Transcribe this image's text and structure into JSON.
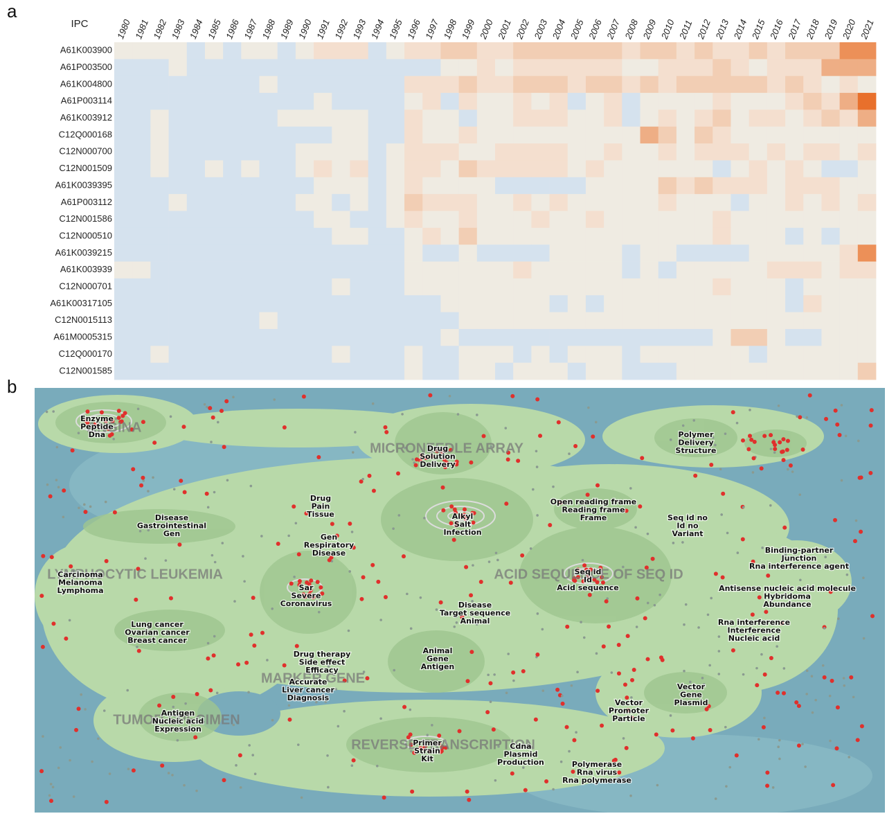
{
  "panels": [
    "a",
    "b"
  ],
  "chart_data": {
    "type": "heatmap",
    "y_label": "IPC",
    "categories": [
      "1980",
      "1981",
      "1982",
      "1983",
      "1984",
      "1985",
      "1986",
      "1987",
      "1988",
      "1989",
      "1990",
      "1991",
      "1992",
      "1993",
      "1994",
      "1995",
      "1996",
      "1997",
      "1998",
      "1999",
      "2000",
      "2001",
      "2002",
      "2003",
      "2004",
      "2005",
      "2006",
      "2007",
      "2008",
      "2009",
      "2010",
      "2011",
      "2012",
      "2013",
      "2014",
      "2015",
      "2016",
      "2017",
      "2018",
      "2019",
      "2020",
      "2021"
    ],
    "rows": [
      "A61K003900",
      "A61P003500",
      "A61K004800",
      "A61P003114",
      "A61K003912",
      "C12Q000168",
      "C12N000700",
      "C12N001509",
      "A61K0039395",
      "A61P003112",
      "C12N001586",
      "C12N000510",
      "A61K0039215",
      "A61K003939",
      "C12N000701",
      "A61K00317105",
      "C12N0015113",
      "A61M0005315",
      "C12Q000170",
      "C12N001585"
    ],
    "colorscale": [
      "#d5e2ee",
      "#efebe2",
      "#f4dfcf",
      "#f2ceb4",
      "#eeae85",
      "#ec9058",
      "#e8702c"
    ],
    "values": [
      [
        1,
        1,
        1,
        1,
        0,
        1,
        0,
        1,
        1,
        0,
        1,
        2,
        2,
        2,
        0,
        1,
        2,
        2,
        3,
        3,
        2,
        2,
        3,
        3,
        3,
        3,
        3,
        3,
        2,
        3,
        3,
        2,
        3,
        2,
        2,
        3,
        2,
        3,
        3,
        3,
        5,
        5
      ],
      [
        0,
        0,
        0,
        1,
        0,
        0,
        0,
        0,
        0,
        0,
        0,
        0,
        0,
        0,
        0,
        0,
        0,
        0,
        1,
        1,
        2,
        1,
        2,
        2,
        2,
        2,
        2,
        2,
        1,
        1,
        2,
        2,
        2,
        3,
        2,
        1,
        2,
        2,
        2,
        4,
        4,
        4
      ],
      [
        0,
        0,
        0,
        0,
        0,
        0,
        0,
        0,
        1,
        0,
        0,
        0,
        0,
        0,
        0,
        0,
        2,
        2,
        2,
        3,
        2,
        2,
        3,
        3,
        3,
        2,
        3,
        3,
        2,
        3,
        2,
        3,
        3,
        3,
        3,
        3,
        2,
        3,
        2,
        1,
        2,
        1
      ],
      [
        0,
        0,
        0,
        0,
        0,
        0,
        0,
        0,
        0,
        0,
        0,
        1,
        0,
        0,
        0,
        0,
        1,
        2,
        0,
        2,
        1,
        1,
        2,
        1,
        2,
        0,
        1,
        2,
        0,
        1,
        1,
        1,
        1,
        2,
        1,
        1,
        1,
        2,
        3,
        2,
        4,
        6
      ],
      [
        0,
        0,
        1,
        0,
        0,
        0,
        0,
        0,
        0,
        1,
        1,
        1,
        1,
        1,
        0,
        0,
        2,
        1,
        1,
        0,
        1,
        1,
        2,
        2,
        2,
        1,
        1,
        2,
        0,
        1,
        2,
        1,
        2,
        3,
        1,
        2,
        2,
        1,
        2,
        3,
        2,
        4
      ],
      [
        0,
        0,
        1,
        0,
        0,
        0,
        0,
        0,
        0,
        0,
        0,
        0,
        1,
        1,
        0,
        0,
        2,
        1,
        1,
        2,
        1,
        1,
        1,
        1,
        1,
        1,
        1,
        1,
        1,
        4,
        3,
        1,
        3,
        2,
        1,
        1,
        1,
        1,
        1,
        1,
        1,
        1
      ],
      [
        0,
        0,
        1,
        0,
        0,
        0,
        0,
        0,
        0,
        0,
        1,
        1,
        1,
        1,
        0,
        1,
        2,
        2,
        2,
        1,
        1,
        2,
        2,
        2,
        2,
        1,
        1,
        2,
        1,
        1,
        2,
        1,
        2,
        2,
        2,
        1,
        2,
        1,
        2,
        2,
        1,
        2
      ],
      [
        0,
        0,
        1,
        0,
        0,
        1,
        0,
        1,
        0,
        0,
        1,
        2,
        1,
        2,
        0,
        1,
        2,
        2,
        1,
        3,
        2,
        2,
        2,
        2,
        2,
        1,
        2,
        1,
        1,
        1,
        1,
        1,
        1,
        0,
        1,
        2,
        1,
        2,
        1,
        0,
        0,
        1
      ],
      [
        0,
        0,
        0,
        0,
        0,
        0,
        0,
        0,
        0,
        0,
        0,
        1,
        1,
        1,
        0,
        1,
        2,
        1,
        1,
        1,
        1,
        0,
        0,
        0,
        0,
        0,
        1,
        1,
        1,
        1,
        3,
        2,
        3,
        2,
        2,
        2,
        1,
        2,
        2,
        2,
        1,
        1
      ],
      [
        0,
        0,
        0,
        1,
        0,
        0,
        0,
        0,
        0,
        0,
        1,
        1,
        0,
        1,
        0,
        1,
        3,
        2,
        2,
        2,
        1,
        1,
        2,
        1,
        2,
        1,
        1,
        1,
        1,
        1,
        2,
        1,
        1,
        1,
        0,
        1,
        1,
        2,
        1,
        2,
        1,
        2
      ],
      [
        0,
        0,
        0,
        0,
        0,
        0,
        0,
        0,
        0,
        0,
        0,
        1,
        1,
        0,
        0,
        1,
        2,
        1,
        1,
        2,
        1,
        1,
        1,
        2,
        1,
        1,
        2,
        1,
        1,
        1,
        1,
        1,
        1,
        2,
        1,
        1,
        1,
        1,
        1,
        1,
        1,
        1
      ],
      [
        0,
        0,
        0,
        0,
        0,
        0,
        0,
        0,
        0,
        0,
        0,
        0,
        1,
        1,
        0,
        0,
        1,
        2,
        1,
        3,
        1,
        1,
        1,
        1,
        1,
        1,
        1,
        1,
        1,
        1,
        1,
        1,
        1,
        2,
        1,
        1,
        1,
        0,
        1,
        0,
        1,
        1
      ],
      [
        0,
        0,
        0,
        0,
        0,
        0,
        0,
        0,
        0,
        0,
        0,
        0,
        0,
        0,
        0,
        0,
        1,
        0,
        0,
        1,
        0,
        0,
        0,
        0,
        1,
        1,
        1,
        1,
        0,
        1,
        1,
        0,
        0,
        0,
        0,
        1,
        1,
        1,
        1,
        1,
        2,
        5
      ],
      [
        1,
        1,
        0,
        0,
        0,
        0,
        0,
        0,
        0,
        0,
        0,
        0,
        0,
        0,
        0,
        0,
        1,
        1,
        1,
        1,
        1,
        1,
        2,
        1,
        1,
        1,
        1,
        1,
        0,
        1,
        0,
        1,
        1,
        1,
        1,
        1,
        2,
        2,
        2,
        1,
        2,
        2
      ],
      [
        0,
        0,
        0,
        0,
        0,
        0,
        0,
        0,
        0,
        0,
        0,
        0,
        1,
        0,
        0,
        0,
        1,
        1,
        1,
        1,
        1,
        1,
        1,
        1,
        1,
        1,
        1,
        1,
        1,
        1,
        1,
        1,
        1,
        2,
        1,
        1,
        1,
        0,
        1,
        1,
        1,
        1
      ],
      [
        0,
        0,
        0,
        0,
        0,
        0,
        0,
        0,
        0,
        0,
        0,
        0,
        0,
        0,
        0,
        0,
        0,
        0,
        1,
        1,
        1,
        1,
        1,
        1,
        0,
        1,
        0,
        1,
        1,
        1,
        1,
        1,
        1,
        1,
        1,
        1,
        1,
        0,
        2,
        1,
        1,
        1
      ],
      [
        0,
        0,
        0,
        0,
        0,
        0,
        0,
        0,
        1,
        0,
        0,
        0,
        0,
        0,
        0,
        0,
        0,
        0,
        0,
        1,
        1,
        1,
        1,
        1,
        1,
        1,
        1,
        1,
        1,
        1,
        1,
        1,
        1,
        1,
        1,
        1,
        1,
        1,
        1,
        1,
        1,
        1
      ],
      [
        0,
        0,
        0,
        0,
        0,
        0,
        0,
        0,
        0,
        0,
        0,
        0,
        0,
        0,
        0,
        0,
        0,
        0,
        1,
        0,
        0,
        0,
        0,
        0,
        0,
        0,
        0,
        0,
        0,
        0,
        0,
        0,
        0,
        1,
        3,
        3,
        1,
        0,
        0,
        1,
        1,
        1
      ],
      [
        0,
        0,
        1,
        0,
        0,
        0,
        0,
        0,
        0,
        0,
        0,
        0,
        1,
        0,
        0,
        0,
        1,
        0,
        0,
        1,
        1,
        1,
        0,
        1,
        0,
        1,
        1,
        1,
        0,
        1,
        1,
        1,
        1,
        1,
        1,
        0,
        1,
        1,
        1,
        1,
        1,
        1
      ],
      [
        0,
        0,
        0,
        0,
        0,
        0,
        0,
        0,
        0,
        0,
        0,
        0,
        0,
        0,
        0,
        0,
        1,
        0,
        0,
        1,
        1,
        0,
        1,
        1,
        1,
        0,
        1,
        1,
        0,
        0,
        0,
        1,
        1,
        1,
        1,
        1,
        1,
        1,
        1,
        1,
        1,
        3
      ]
    ]
  },
  "landscape": {
    "regions": [
      "ANGINA",
      "MICRONEEDLE ARRAY",
      "LYMPHOCYTIC LEUKEMIA",
      "ACID SEQUENCE OF SEQ ID",
      "MARKER GENE",
      "TUMOR SPECIMEN",
      "REVERSE TRANSCRIPTION"
    ],
    "clusters": [
      [
        "Enzyme",
        "Peptide",
        "Dna"
      ],
      [
        "Drug",
        "Solution",
        "Delivery"
      ],
      [
        "Polymer",
        "Delivery",
        "Structure"
      ],
      [
        "Drug",
        "Pain",
        "Tissue"
      ],
      [
        "Open reading frame",
        "Reading frame",
        "Frame"
      ],
      [
        "Alkyl",
        "Salt",
        "Infection"
      ],
      [
        "Seq id no",
        "Id no",
        "Variant"
      ],
      [
        "Disease",
        "Gastrointestinal",
        "Gen"
      ],
      [
        "Gen",
        "Respiratory",
        "Disease"
      ],
      [
        "Binding-partner",
        "Junction",
        "Rna interference agent"
      ],
      [
        "Carcinoma",
        "Melanoma",
        "Lymphoma"
      ],
      [
        "Seq id",
        "Id",
        "Acid sequence"
      ],
      [
        "Sar",
        "Severe",
        "Coronavirus"
      ],
      [
        "Antisense nucleic acid molecule",
        "Hybridoma",
        "Abundance"
      ],
      [
        "Disease",
        "Target sequence",
        "Animal"
      ],
      [
        "Lung cancer",
        "Ovarian cancer",
        "Breast cancer"
      ],
      [
        "Rna interference",
        "Interference",
        "Nucleic acid"
      ],
      [
        "Animal",
        "Gene",
        "Antigen"
      ],
      [
        "Drug therapy",
        "Side effect",
        "Efficacy"
      ],
      [
        "Vector",
        "Gene",
        "Plasmid"
      ],
      [
        "Accurate",
        "Liver cancer",
        "Diagnosis"
      ],
      [
        "Vector",
        "Promoter",
        "Particle"
      ],
      [
        "Antigen",
        "Nucleic acid",
        "Expression"
      ],
      [
        "Primer",
        "Strain",
        "Kit"
      ],
      [
        "Cdna",
        "Plasmid",
        "Production"
      ],
      [
        "Polymerase",
        "Rna virus",
        "Rna polymerase"
      ]
    ]
  }
}
